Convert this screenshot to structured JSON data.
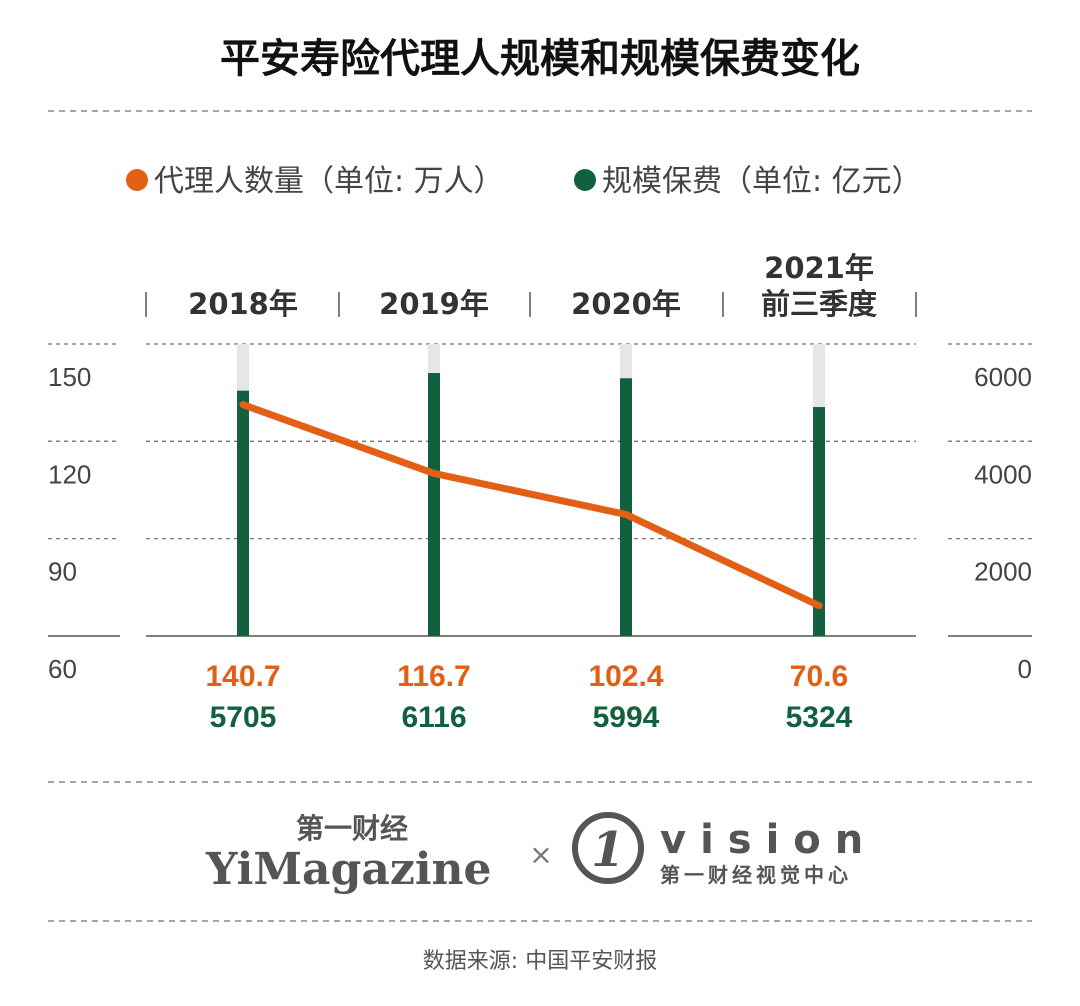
{
  "chart_data": {
    "type": "bar+line",
    "title": "平安寿险代理人规模和规模保费变化",
    "categories": [
      [
        "2018年"
      ],
      [
        "2019年"
      ],
      [
        "2020年"
      ],
      [
        "2021年",
        "前三季度"
      ]
    ],
    "series": [
      {
        "name": "代理人数量（单位: 万人）",
        "type": "line",
        "axis": "left",
        "color": "#e35f16",
        "values": [
          140.7,
          116.7,
          102.4,
          70.6
        ],
        "labels": [
          "140.7",
          "116.7",
          "102.4",
          "70.6"
        ]
      },
      {
        "name": "规模保费（单位: 亿元）",
        "type": "bar",
        "axis": "right",
        "color": "#11603e",
        "values": [
          5705,
          6116,
          5994,
          5324
        ],
        "labels": [
          "5705",
          "6116",
          "5994",
          "5324"
        ]
      }
    ],
    "y_left": {
      "ticks": [
        "150",
        "120",
        "90",
        "60"
      ],
      "range": [
        60,
        150
      ]
    },
    "y_right": {
      "ticks": [
        "6000",
        "4000",
        "2000",
        "0"
      ],
      "range": [
        0,
        6000
      ]
    },
    "grid": true,
    "legend": "top"
  },
  "footer": {
    "brand_cn": "第一财经",
    "brand_en": "YiMagazine",
    "cross": "×",
    "vision_mark": "1",
    "vision": "vision",
    "vision_cn": "第一财经视觉中心",
    "source": "数据来源: 中国平安财报"
  }
}
